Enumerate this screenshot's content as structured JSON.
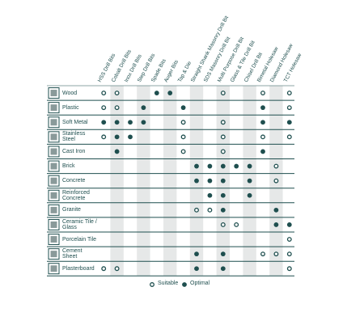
{
  "columns": [
    "HSS Drill Bits",
    "Cobalt Drill Bits",
    "Inox Drill Bits",
    "Step Drill Bits",
    "Spade Bits",
    "Auger Bits",
    "Tap & Die",
    "Straight Shank Masonry Drill Bit",
    "SDS Masonry Drill Bit",
    "Multi Purpose Drill Bit",
    "Glass & Tile Drill Bit",
    "Chisel Drill Bit",
    "Bimetal Holesaw",
    "Diamond Holesaw",
    "TCT Holesaw"
  ],
  "rows": [
    {
      "label": "Wood",
      "cells": [
        0,
        0,
        null,
        null,
        1,
        1,
        null,
        null,
        null,
        0,
        null,
        null,
        0,
        null,
        0
      ]
    },
    {
      "label": "Plastic",
      "cells": [
        0,
        0,
        null,
        1,
        null,
        null,
        1,
        null,
        null,
        null,
        null,
        null,
        1,
        null,
        0
      ]
    },
    {
      "label": "Soft Metal",
      "cells": [
        1,
        1,
        1,
        1,
        null,
        null,
        0,
        null,
        null,
        0,
        null,
        null,
        1,
        null,
        1
      ]
    },
    {
      "label": "Stainless Steel",
      "cells": [
        0,
        1,
        1,
        null,
        null,
        null,
        0,
        null,
        null,
        0,
        null,
        null,
        0,
        null,
        0
      ]
    },
    {
      "label": "Cast Iron",
      "cells": [
        null,
        1,
        null,
        null,
        null,
        null,
        0,
        null,
        null,
        0,
        null,
        null,
        1,
        null,
        null
      ]
    },
    {
      "label": "Brick",
      "cells": [
        null,
        null,
        null,
        null,
        null,
        null,
        null,
        1,
        1,
        1,
        1,
        1,
        null,
        0,
        null
      ]
    },
    {
      "label": "Concrete",
      "cells": [
        null,
        null,
        null,
        null,
        null,
        null,
        null,
        1,
        1,
        1,
        null,
        1,
        null,
        0,
        null
      ]
    },
    {
      "label": "Reinforced Concrete",
      "cells": [
        null,
        null,
        null,
        null,
        null,
        null,
        null,
        null,
        1,
        1,
        null,
        1,
        null,
        null,
        null
      ]
    },
    {
      "label": "Granite",
      "cells": [
        null,
        null,
        null,
        null,
        null,
        null,
        null,
        0,
        0,
        1,
        null,
        null,
        null,
        1,
        null
      ]
    },
    {
      "label": "Ceramic Tile / Glass",
      "cells": [
        null,
        null,
        null,
        null,
        null,
        null,
        null,
        null,
        null,
        0,
        0,
        null,
        null,
        1,
        1
      ]
    },
    {
      "label": "Porcelain Tile",
      "cells": [
        null,
        null,
        null,
        null,
        null,
        null,
        null,
        null,
        null,
        null,
        null,
        null,
        null,
        null,
        0
      ]
    },
    {
      "label": "Cement Sheet",
      "cells": [
        null,
        null,
        null,
        null,
        null,
        null,
        null,
        1,
        null,
        1,
        null,
        null,
        0,
        0,
        0
      ]
    },
    {
      "label": "Plasterboard",
      "cells": [
        0,
        0,
        null,
        null,
        null,
        null,
        null,
        1,
        null,
        1,
        null,
        null,
        null,
        null,
        0
      ]
    }
  ],
  "legend": [
    "Suitable",
    "Optimal"
  ]
}
